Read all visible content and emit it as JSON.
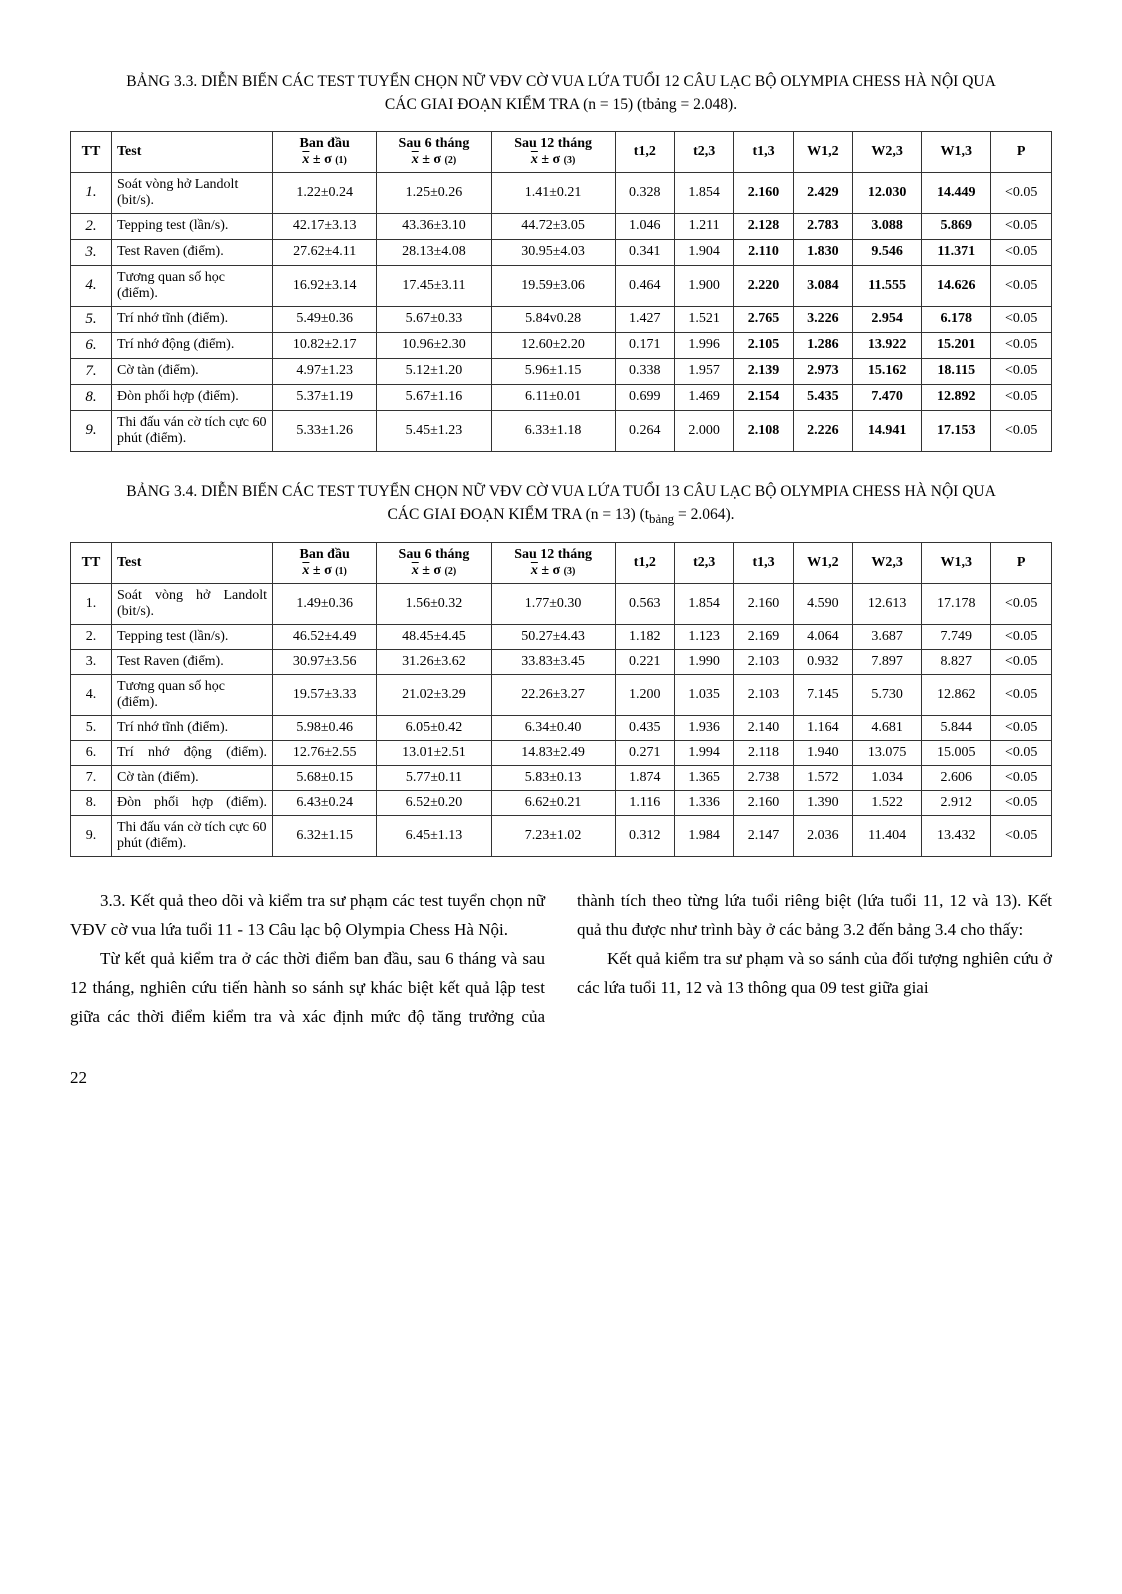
{
  "table1": {
    "caption": "BẢNG 3.3. DIỄN BIẾN CÁC TEST TUYỂN CHỌN NỮ VĐV CỜ VUA LỨA TUỔI 12 CÂU LẠC BỘ OLYMPIA CHESS HÀ NỘI QUA CÁC GIAI ĐOẠN KIỂM TRA (n = 15) (tbảng = 2.048).",
    "headers": {
      "tt": "TT",
      "test": "Test",
      "bandau_label": "Ban đầu",
      "bandau_sub": "(1)",
      "sau6_label": "Sau 6 tháng",
      "sau6_sub": "(2)",
      "sau12_label": "Sau 12 tháng",
      "sau12_sub": "(3)",
      "t12": "t1,2",
      "t23": "t2,3",
      "t13": "t1,3",
      "w12": "W1,2",
      "w23": "W2,3",
      "w13": "W1,3",
      "p": "P"
    },
    "rows": [
      {
        "tt": "1.",
        "test": "Soát vòng hở Landolt (bit/s).",
        "c1": "1.22±0.24",
        "c2": "1.25±0.26",
        "c3": "1.41±0.21",
        "t12": "0.328",
        "t23": "1.854",
        "t13": "2.160",
        "w12": "2.429",
        "w23": "12.030",
        "w13": "14.449",
        "p": "<0.05",
        "bold": [
          "t13",
          "w12",
          "w23",
          "w13"
        ]
      },
      {
        "tt": "2.",
        "test": "Tepping test (lần/s).",
        "c1": "42.17±3.13",
        "c2": "43.36±3.10",
        "c3": "44.72±3.05",
        "t12": "1.046",
        "t23": "1.211",
        "t13": "2.128",
        "w12": "2.783",
        "w23": "3.088",
        "w13": "5.869",
        "p": "<0.05",
        "bold": [
          "t13",
          "w12",
          "w23",
          "w13"
        ]
      },
      {
        "tt": "3.",
        "test": "Test Raven (điểm).",
        "c1": "27.62±4.11",
        "c2": "28.13±4.08",
        "c3": "30.95±4.03",
        "t12": "0.341",
        "t23": "1.904",
        "t13": "2.110",
        "w12": "1.830",
        "w23": "9.546",
        "w13": "11.371",
        "p": "<0.05",
        "bold": [
          "t13",
          "w12",
          "w23",
          "w13"
        ]
      },
      {
        "tt": "4.",
        "test": "Tương quan số học (điểm).",
        "c1": "16.92±3.14",
        "c2": "17.45±3.11",
        "c3": "19.59±3.06",
        "t12": "0.464",
        "t23": "1.900",
        "t13": "2.220",
        "w12": "3.084",
        "w23": "11.555",
        "w13": "14.626",
        "p": "<0.05",
        "bold": [
          "t13",
          "w12",
          "w23",
          "w13"
        ]
      },
      {
        "tt": "5.",
        "test": "Trí nhớ tĩnh (điểm).",
        "c1": "5.49±0.36",
        "c2": "5.67±0.33",
        "c3": "5.84v0.28",
        "t12": "1.427",
        "t23": "1.521",
        "t13": "2.765",
        "w12": "3.226",
        "w23": "2.954",
        "w13": "6.178",
        "p": "<0.05",
        "bold": [
          "t13",
          "w12",
          "w23",
          "w13"
        ]
      },
      {
        "tt": "6.",
        "test": "Trí nhớ động (điểm).",
        "c1": "10.82±2.17",
        "c2": "10.96±2.30",
        "c3": "12.60±2.20",
        "t12": "0.171",
        "t23": "1.996",
        "t13": "2.105",
        "w12": "1.286",
        "w23": "13.922",
        "w13": "15.201",
        "p": "<0.05",
        "bold": [
          "t13",
          "w12",
          "w23",
          "w13"
        ]
      },
      {
        "tt": "7.",
        "test": "Cờ tàn (điểm).",
        "c1": "4.97±1.23",
        "c2": "5.12±1.20",
        "c3": "5.96±1.15",
        "t12": "0.338",
        "t23": "1.957",
        "t13": "2.139",
        "w12": "2.973",
        "w23": "15.162",
        "w13": "18.115",
        "p": "<0.05",
        "bold": [
          "t13",
          "w12",
          "w23",
          "w13"
        ]
      },
      {
        "tt": "8.",
        "test": "Đòn phối hợp (điểm).",
        "c1": "5.37±1.19",
        "c2": "5.67±1.16",
        "c3": "6.11±0.01",
        "t12": "0.699",
        "t23": "1.469",
        "t13": "2.154",
        "w12": "5.435",
        "w23": "7.470",
        "w13": "12.892",
        "p": "<0.05",
        "bold": [
          "t13",
          "w12",
          "w23",
          "w13"
        ]
      },
      {
        "tt": "9.",
        "test": "Thi đấu ván cờ tích cực 60 phút (điểm).",
        "c1": "5.33±1.26",
        "c2": "5.45±1.23",
        "c3": "6.33±1.18",
        "t12": "0.264",
        "t23": "2.000",
        "t13": "2.108",
        "w12": "2.226",
        "w23": "14.941",
        "w13": "17.153",
        "p": "<0.05",
        "bold": [
          "t13",
          "w12",
          "w23",
          "w13"
        ]
      }
    ]
  },
  "table2": {
    "caption_prefix": "BẢNG 3.4. DIỄN BIẾN CÁC TEST TUYỂN CHỌN NỮ VĐV CỜ VUA LỨA TUỔI 13 CÂU LẠC BỘ OLYMPIA CHESS HÀ NỘI QUA CÁC GIAI ĐOẠN KIỂM TRA (n = 13) (t",
    "caption_sub": "bảng",
    "caption_suffix": " = 2.064).",
    "headers": {
      "tt": "TT",
      "test": "Test",
      "bandau_label": "Ban đầu",
      "bandau_sub": "(1)",
      "sau6_label": "Sau 6 tháng",
      "sau6_sub": "(2)",
      "sau12_label": "Sau 12 tháng",
      "sau12_sub": "(3)",
      "t12": "t1,2",
      "t23": "t2,3",
      "t13": "t1,3",
      "w12": "W1,2",
      "w23": "W2,3",
      "w13": "W1,3",
      "p": "P"
    },
    "rows": [
      {
        "tt": "1.",
        "test": "Soát vòng hở Landolt (bit/s).",
        "justify": true,
        "c1": "1.49±0.36",
        "c2": "1.56±0.32",
        "c3": "1.77±0.30",
        "t12": "0.563",
        "t23": "1.854",
        "t13": "2.160",
        "w12": "4.590",
        "w23": "12.613",
        "w13": "17.178",
        "p": "<0.05"
      },
      {
        "tt": "2.",
        "test": "Tepping test (lần/s).",
        "c1": "46.52±4.49",
        "c2": "48.45±4.45",
        "c3": "50.27±4.43",
        "t12": "1.182",
        "t23": "1.123",
        "t13": "2.169",
        "w12": "4.064",
        "w23": "3.687",
        "w13": "7.749",
        "p": "<0.05"
      },
      {
        "tt": "3.",
        "test": "Test Raven (điểm).",
        "c1": "30.97±3.56",
        "c2": "31.26±3.62",
        "c3": "33.83±3.45",
        "t12": "0.221",
        "t23": "1.990",
        "t13": "2.103",
        "w12": "0.932",
        "w23": "7.897",
        "w13": "8.827",
        "p": "<0.05"
      },
      {
        "tt": "4.",
        "test": "Tương quan số học (điểm).",
        "c1": "19.57±3.33",
        "c2": "21.02±3.29",
        "c3": "22.26±3.27",
        "t12": "1.200",
        "t23": "1.035",
        "t13": "2.103",
        "w12": "7.145",
        "w23": "5.730",
        "w13": "12.862",
        "p": "<0.05"
      },
      {
        "tt": "5.",
        "test": "Trí nhớ tĩnh (điểm).",
        "c1": "5.98±0.46",
        "c2": "6.05±0.42",
        "c3": "6.34±0.40",
        "t12": "0.435",
        "t23": "1.936",
        "t13": "2.140",
        "w12": "1.164",
        "w23": "4.681",
        "w13": "5.844",
        "p": "<0.05"
      },
      {
        "tt": "6.",
        "test": "Trí nhớ động (điểm).",
        "justify": true,
        "c1": "12.76±2.55",
        "c2": "13.01±2.51",
        "c3": "14.83±2.49",
        "t12": "0.271",
        "t23": "1.994",
        "t13": "2.118",
        "w12": "1.940",
        "w23": "13.075",
        "w13": "15.005",
        "p": "<0.05"
      },
      {
        "tt": "7.",
        "test": "Cờ tàn (điểm).",
        "c1": "5.68±0.15",
        "c2": "5.77±0.11",
        "c3": "5.83±0.13",
        "t12": "1.874",
        "t23": "1.365",
        "t13": "2.738",
        "w12": "1.572",
        "w23": "1.034",
        "w13": "2.606",
        "p": "<0.05"
      },
      {
        "tt": "8.",
        "test": "Đòn phối hợp (điểm).",
        "justify": true,
        "c1": "6.43±0.24",
        "c2": "6.52±0.20",
        "c3": "6.62±0.21",
        "t12": "1.116",
        "t23": "1.336",
        "t13": "2.160",
        "w12": "1.390",
        "w23": "1.522",
        "w13": "2.912",
        "p": "<0.05"
      },
      {
        "tt": "9.",
        "test": "Thi đấu ván cờ tích cực 60 phút (điểm).",
        "c1": "6.32±1.15",
        "c2": "6.45±1.13",
        "c3": "7.23±1.02",
        "t12": "0.312",
        "t23": "1.984",
        "t13": "2.147",
        "w12": "2.036",
        "w23": "11.404",
        "w13": "13.432",
        "p": "<0.05"
      }
    ]
  },
  "body": {
    "p1": "3.3. Kết quả theo dõi và kiểm tra sư phạm các test tuyển chọn nữ VĐV cờ vua lứa tuổi 11 - 13 Câu lạc bộ Olympia Chess Hà Nội.",
    "p2": "Từ kết quả kiểm tra ở các thời điểm ban đầu, sau 6 tháng và sau 12 tháng, nghiên cứu tiến hành so sánh sự khác biệt kết quả lập test giữa các thời điểm kiểm tra và xác định mức độ tăng trưởng của thành tích theo từng lứa tuổi riêng biệt (lứa tuổi 11, 12 và 13). Kết quả thu được như trình bày ở các bảng 3.2 đến bảng 3.4 cho thấy:",
    "p3": "Kết quả kiểm tra sư phạm và so sánh của đối tượng nghiên cứu ở các lứa tuổi 11, 12 và 13 thông qua 09 test giữa giai"
  },
  "pagenum": "22"
}
